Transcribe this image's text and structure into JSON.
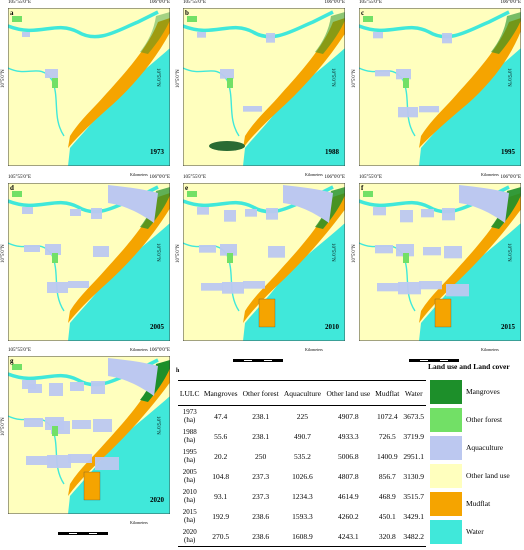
{
  "colors": {
    "mangroves": "#1d8f2a",
    "other_forest": "#72e066",
    "aquaculture": "#bcc8f0",
    "other_land": "#ffffbe",
    "mudflat": "#f5a400",
    "water": "#40e8da"
  },
  "coords": {
    "lon_left": "105°55'0\"E",
    "lon_right": "106°0'0\"E",
    "lat": "10°5'0\"N",
    "scale_unit": "Kilometers"
  },
  "panels": [
    {
      "label": "a",
      "year": "1973"
    },
    {
      "label": "b",
      "year": "1988"
    },
    {
      "label": "c",
      "year": "1995"
    },
    {
      "label": "d",
      "year": "2005"
    },
    {
      "label": "e",
      "year": "2010"
    },
    {
      "label": "f",
      "year": "2015"
    },
    {
      "label": "g",
      "year": "2020"
    }
  ],
  "table": {
    "label": "h",
    "headers": [
      "LULC",
      "Mangroves",
      "Other forest",
      "Aquaculture",
      "Other land use",
      "Mudflat",
      "Water"
    ],
    "rows": [
      {
        "year": "1973",
        "unit": "(ha)",
        "values": [
          "47.4",
          "238.1",
          "225",
          "4907.8",
          "1072.4",
          "3673.5"
        ]
      },
      {
        "year": "1988",
        "unit": "(ha)",
        "values": [
          "55.6",
          "238.1",
          "490.7",
          "4933.3",
          "726.5",
          "3719.9"
        ]
      },
      {
        "year": "1995",
        "unit": "(ha)",
        "values": [
          "20.2",
          "250",
          "535.2",
          "5006.8",
          "1400.9",
          "2951.1"
        ]
      },
      {
        "year": "2005",
        "unit": "(ha)",
        "values": [
          "104.8",
          "237.3",
          "1026.6",
          "4807.8",
          "856.7",
          "3130.9"
        ]
      },
      {
        "year": "2010",
        "unit": "(ha)",
        "values": [
          "93.1",
          "237.3",
          "1234.3",
          "4614.9",
          "468.9",
          "3515.7"
        ]
      },
      {
        "year": "2015",
        "unit": "(ha)",
        "values": [
          "192.9",
          "238.6",
          "1593.3",
          "4260.2",
          "450.1",
          "3429.1"
        ]
      },
      {
        "year": "2020",
        "unit": "(ha)",
        "values": [
          "270.5",
          "238.6",
          "1608.9",
          "4243.1",
          "320.8",
          "3482.2"
        ]
      }
    ]
  },
  "legend": {
    "title": "Land use and Land cover",
    "items": [
      {
        "label": "Mangroves",
        "color": "#1d8f2a"
      },
      {
        "label": "Other forest",
        "color": "#72e066"
      },
      {
        "label": "Aquaculture",
        "color": "#bcc8f0"
      },
      {
        "label": "Other land use",
        "color": "#ffffbe"
      },
      {
        "label": "Mudflat",
        "color": "#f5a400"
      },
      {
        "label": "Water",
        "color": "#40e8da"
      }
    ]
  }
}
